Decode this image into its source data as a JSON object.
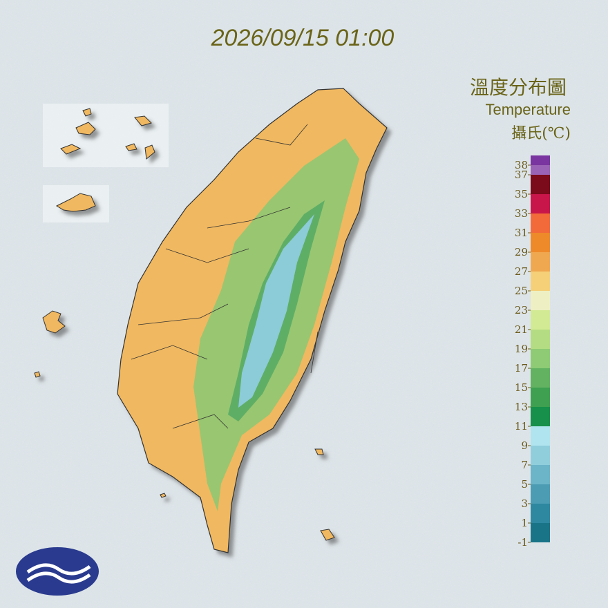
{
  "header": {
    "datetime": "2026/09/15 01:00"
  },
  "legend": {
    "title_zh": "溫度分布圖",
    "title_en": "Temperature",
    "unit": "攝氏(℃)",
    "top_color": "#7a35a0",
    "ticks": [
      38,
      37,
      35,
      33,
      31,
      29,
      27,
      25,
      23,
      21,
      19,
      17,
      15,
      13,
      11,
      9,
      7,
      5,
      3,
      1,
      -1
    ],
    "colors": [
      "#9b63b5",
      "#7b0a1a",
      "#c8164a",
      "#f26a3a",
      "#ee8a2a",
      "#f0a850",
      "#f5d078",
      "#eef0c4",
      "#d2ea94",
      "#b4dc82",
      "#8ecb74",
      "#62b262",
      "#3ea050",
      "#16904a",
      "#b0e4ee",
      "#90cedc",
      "#6cb4c8",
      "#4c9cb4",
      "#2e88a0",
      "#1a7488"
    ]
  }
}
